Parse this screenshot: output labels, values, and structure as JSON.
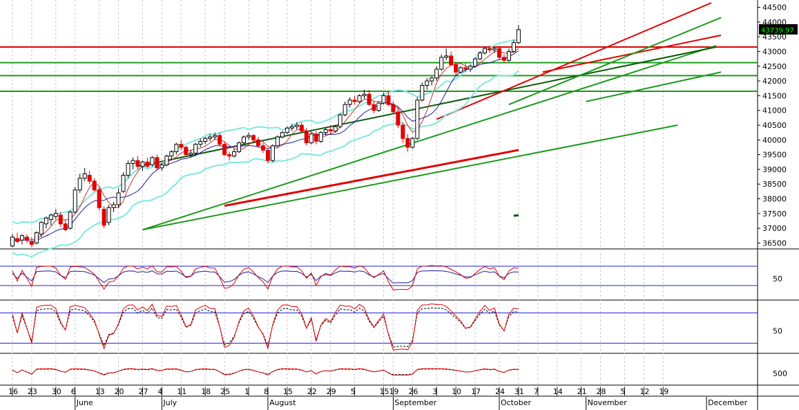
{
  "chart_data": {
    "type": "candlestick",
    "price_panel": {
      "ylim": [
        36300,
        44700
      ],
      "y_ticks": [
        36500,
        37000,
        37500,
        38000,
        38500,
        39000,
        39500,
        40000,
        40500,
        41000,
        41500,
        42000,
        42500,
        43000,
        43500,
        44000,
        44500
      ],
      "last_price_label": "43739.97",
      "horizontal_levels": {
        "red": [
          43150
        ],
        "green": [
          42620,
          42180,
          41650
        ]
      },
      "candles": [
        {
          "o": 36400,
          "h": 36800,
          "l": 36350,
          "c": 36700
        },
        {
          "o": 36650,
          "h": 36850,
          "l": 36500,
          "c": 36550
        },
        {
          "o": 36600,
          "h": 36800,
          "l": 36450,
          "c": 36750
        },
        {
          "o": 36700,
          "h": 36800,
          "l": 36500,
          "c": 36600
        },
        {
          "o": 36550,
          "h": 36700,
          "l": 36350,
          "c": 36450
        },
        {
          "o": 36500,
          "h": 36900,
          "l": 36450,
          "c": 36850
        },
        {
          "o": 36800,
          "h": 37250,
          "l": 36700,
          "c": 37200
        },
        {
          "o": 37150,
          "h": 37400,
          "l": 37000,
          "c": 37350
        },
        {
          "o": 37300,
          "h": 37500,
          "l": 37100,
          "c": 37450
        },
        {
          "o": 37400,
          "h": 37650,
          "l": 37300,
          "c": 37500
        },
        {
          "o": 37450,
          "h": 37550,
          "l": 37050,
          "c": 37150
        },
        {
          "o": 37150,
          "h": 37300,
          "l": 36900,
          "c": 36950
        },
        {
          "o": 37000,
          "h": 37600,
          "l": 36950,
          "c": 37550
        },
        {
          "o": 37550,
          "h": 38400,
          "l": 37500,
          "c": 38300
        },
        {
          "o": 38300,
          "h": 38850,
          "l": 38200,
          "c": 38700
        },
        {
          "o": 38700,
          "h": 39050,
          "l": 38600,
          "c": 38850
        },
        {
          "o": 38800,
          "h": 38950,
          "l": 38500,
          "c": 38600
        },
        {
          "o": 38600,
          "h": 38700,
          "l": 38250,
          "c": 38300
        },
        {
          "o": 38300,
          "h": 38400,
          "l": 37600,
          "c": 37700
        },
        {
          "o": 37650,
          "h": 37750,
          "l": 37000,
          "c": 37100
        },
        {
          "o": 37200,
          "h": 37800,
          "l": 37100,
          "c": 37700
        },
        {
          "o": 37700,
          "h": 37900,
          "l": 37550,
          "c": 37800
        },
        {
          "o": 37800,
          "h": 38350,
          "l": 37700,
          "c": 38200
        },
        {
          "o": 38250,
          "h": 38900,
          "l": 38200,
          "c": 38800
        },
        {
          "o": 38800,
          "h": 39300,
          "l": 38700,
          "c": 39200
        },
        {
          "o": 39200,
          "h": 39400,
          "l": 39000,
          "c": 39300
        },
        {
          "o": 39300,
          "h": 39450,
          "l": 39000,
          "c": 39100
        },
        {
          "o": 39100,
          "h": 39300,
          "l": 38950,
          "c": 39250
        },
        {
          "o": 39250,
          "h": 39400,
          "l": 39050,
          "c": 39100
        },
        {
          "o": 39150,
          "h": 39450,
          "l": 39100,
          "c": 39400
        },
        {
          "o": 39400,
          "h": 39500,
          "l": 38950,
          "c": 39050
        },
        {
          "o": 39050,
          "h": 39200,
          "l": 38950,
          "c": 39150
        },
        {
          "o": 39150,
          "h": 39500,
          "l": 39100,
          "c": 39450
        },
        {
          "o": 39450,
          "h": 39650,
          "l": 39300,
          "c": 39600
        },
        {
          "o": 39600,
          "h": 39900,
          "l": 39500,
          "c": 39850
        },
        {
          "o": 39850,
          "h": 40000,
          "l": 39650,
          "c": 39750
        },
        {
          "o": 39750,
          "h": 39800,
          "l": 39450,
          "c": 39500
        },
        {
          "o": 39500,
          "h": 39650,
          "l": 39400,
          "c": 39550
        },
        {
          "o": 39550,
          "h": 39900,
          "l": 39500,
          "c": 39850
        },
        {
          "o": 39850,
          "h": 40050,
          "l": 39750,
          "c": 39950
        },
        {
          "o": 39950,
          "h": 40100,
          "l": 39850,
          "c": 40050
        },
        {
          "o": 40050,
          "h": 40200,
          "l": 39950,
          "c": 40100
        },
        {
          "o": 40100,
          "h": 40250,
          "l": 40000,
          "c": 40150
        },
        {
          "o": 40150,
          "h": 40250,
          "l": 39800,
          "c": 39850
        },
        {
          "o": 39850,
          "h": 39950,
          "l": 39450,
          "c": 39500
        },
        {
          "o": 39500,
          "h": 39600,
          "l": 39300,
          "c": 39450
        },
        {
          "o": 39450,
          "h": 39700,
          "l": 39400,
          "c": 39600
        },
        {
          "o": 39600,
          "h": 39950,
          "l": 39550,
          "c": 39900
        },
        {
          "o": 39900,
          "h": 40150,
          "l": 39850,
          "c": 40100
        },
        {
          "o": 40100,
          "h": 40250,
          "l": 40000,
          "c": 40150
        },
        {
          "o": 40150,
          "h": 40200,
          "l": 39950,
          "c": 40000
        },
        {
          "o": 40000,
          "h": 40100,
          "l": 39750,
          "c": 39800
        },
        {
          "o": 39800,
          "h": 39900,
          "l": 39550,
          "c": 39650
        },
        {
          "o": 39650,
          "h": 39700,
          "l": 39200,
          "c": 39300
        },
        {
          "o": 39300,
          "h": 39850,
          "l": 39250,
          "c": 39800
        },
        {
          "o": 39800,
          "h": 40150,
          "l": 39750,
          "c": 40100
        },
        {
          "o": 40100,
          "h": 40300,
          "l": 40050,
          "c": 40250
        },
        {
          "o": 40250,
          "h": 40450,
          "l": 40200,
          "c": 40400
        },
        {
          "o": 40400,
          "h": 40550,
          "l": 40300,
          "c": 40450
        },
        {
          "o": 40450,
          "h": 40600,
          "l": 40350,
          "c": 40500
        },
        {
          "o": 40500,
          "h": 40600,
          "l": 40250,
          "c": 40300
        },
        {
          "o": 40300,
          "h": 40400,
          "l": 39800,
          "c": 39900
        },
        {
          "o": 39900,
          "h": 40250,
          "l": 39850,
          "c": 40200
        },
        {
          "o": 40200,
          "h": 40300,
          "l": 39850,
          "c": 39950
        },
        {
          "o": 39950,
          "h": 40300,
          "l": 39900,
          "c": 40250
        },
        {
          "o": 40250,
          "h": 40400,
          "l": 40150,
          "c": 40350
        },
        {
          "o": 40350,
          "h": 40500,
          "l": 40200,
          "c": 40300
        },
        {
          "o": 40300,
          "h": 40500,
          "l": 40250,
          "c": 40450
        },
        {
          "o": 40450,
          "h": 40900,
          "l": 40400,
          "c": 40850
        },
        {
          "o": 40850,
          "h": 41300,
          "l": 40800,
          "c": 41200
        },
        {
          "o": 41200,
          "h": 41450,
          "l": 41100,
          "c": 41350
        },
        {
          "o": 41350,
          "h": 41500,
          "l": 41200,
          "c": 41300
        },
        {
          "o": 41300,
          "h": 41550,
          "l": 41250,
          "c": 41500
        },
        {
          "o": 41500,
          "h": 41700,
          "l": 41400,
          "c": 41550
        },
        {
          "o": 41550,
          "h": 41700,
          "l": 41150,
          "c": 41200
        },
        {
          "o": 41200,
          "h": 41300,
          "l": 40900,
          "c": 41000
        },
        {
          "o": 41000,
          "h": 41300,
          "l": 40950,
          "c": 41250
        },
        {
          "o": 41250,
          "h": 41600,
          "l": 41200,
          "c": 41500
        },
        {
          "o": 41500,
          "h": 41650,
          "l": 41150,
          "c": 41200
        },
        {
          "o": 41200,
          "h": 41300,
          "l": 40900,
          "c": 40950
        },
        {
          "o": 40950,
          "h": 41100,
          "l": 40400,
          "c": 40500
        },
        {
          "o": 40500,
          "h": 40600,
          "l": 39900,
          "c": 40050
        },
        {
          "o": 40050,
          "h": 40200,
          "l": 39600,
          "c": 39750
        },
        {
          "o": 39750,
          "h": 40100,
          "l": 39700,
          "c": 40050
        },
        {
          "o": 40050,
          "h": 41450,
          "l": 40000,
          "c": 41350
        },
        {
          "o": 41350,
          "h": 41950,
          "l": 41300,
          "c": 41850
        },
        {
          "o": 41850,
          "h": 42100,
          "l": 41700,
          "c": 42000
        },
        {
          "o": 42000,
          "h": 42150,
          "l": 41850,
          "c": 42100
        },
        {
          "o": 42100,
          "h": 42500,
          "l": 42000,
          "c": 42400
        },
        {
          "o": 42400,
          "h": 42900,
          "l": 42350,
          "c": 42800
        },
        {
          "o": 42800,
          "h": 43100,
          "l": 42700,
          "c": 42850
        },
        {
          "o": 42850,
          "h": 43000,
          "l": 42500,
          "c": 42550
        },
        {
          "o": 42550,
          "h": 42650,
          "l": 42200,
          "c": 42300
        },
        {
          "o": 42300,
          "h": 42500,
          "l": 42250,
          "c": 42450
        },
        {
          "o": 42450,
          "h": 42600,
          "l": 42300,
          "c": 42400
        },
        {
          "o": 42400,
          "h": 42550,
          "l": 42300,
          "c": 42500
        },
        {
          "o": 42500,
          "h": 42800,
          "l": 42450,
          "c": 42750
        },
        {
          "o": 42750,
          "h": 43000,
          "l": 42700,
          "c": 42950
        },
        {
          "o": 42950,
          "h": 43150,
          "l": 42900,
          "c": 43100
        },
        {
          "o": 43100,
          "h": 43200,
          "l": 42950,
          "c": 43050
        },
        {
          "o": 43050,
          "h": 43150,
          "l": 42950,
          "c": 43100
        },
        {
          "o": 43100,
          "h": 43200,
          "l": 42700,
          "c": 42800
        },
        {
          "o": 42800,
          "h": 42900,
          "l": 42600,
          "c": 42700
        },
        {
          "o": 42700,
          "h": 43100,
          "l": 42650,
          "c": 43000
        },
        {
          "o": 43000,
          "h": 43400,
          "l": 42950,
          "c": 43300
        },
        {
          "o": 43300,
          "h": 43900,
          "l": 43250,
          "c": 43740
        }
      ]
    },
    "time_axis": {
      "day_ticks": [
        "16",
        "23",
        "30",
        "6",
        "13",
        "20",
        "27",
        "4",
        "11",
        "18",
        "25",
        "1",
        "8",
        "15",
        "22",
        "29",
        "5",
        "15",
        "19",
        "26",
        "3",
        "10",
        "17",
        "24",
        "31",
        "7",
        "14",
        "21",
        "28",
        "5",
        "12",
        "19"
      ],
      "day_tick_indices": [
        0,
        4,
        9,
        13,
        18,
        22,
        27,
        31,
        35,
        40,
        44,
        49,
        53,
        57,
        62,
        66,
        71,
        77,
        79,
        83,
        88,
        92,
        96,
        101,
        105,
        109,
        113,
        118,
        122,
        127,
        131,
        135
      ],
      "months": [
        "June",
        "July",
        "August",
        "September",
        "October",
        "November",
        "December"
      ],
      "month_tick_indices": [
        13,
        31,
        53,
        79,
        101,
        119,
        144
      ]
    },
    "indicator_panels": [
      {
        "name": "oscillator-1",
        "y_tick": "50",
        "levels": [
          30,
          70
        ]
      },
      {
        "name": "stochastic",
        "y_tick": "50",
        "levels": [
          20,
          80
        ]
      },
      {
        "name": "oscillator-3",
        "y_tick": "500"
      }
    ],
    "colors": {
      "up_candle": "#ffffff",
      "down_candle": "#e00000",
      "red_line": "#e00000",
      "green_line": "#1a9a1a",
      "dark_green": "#0a5a0a",
      "bollinger": "#7fe8e0",
      "ma_blue": "#1c1c9c",
      "level_blue": "#2020d0",
      "grid": "#c8c8c8"
    }
  }
}
